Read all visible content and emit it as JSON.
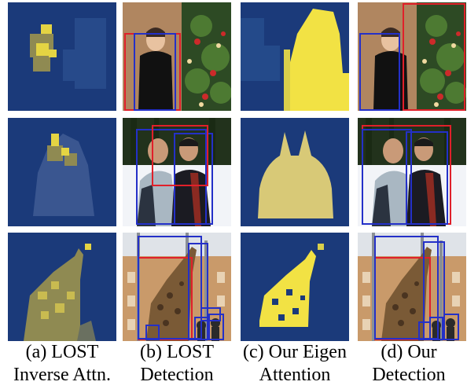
{
  "figure": {
    "columns": [
      {
        "caption_line1": "(a) LOST",
        "caption_line2": "Inverse Attn."
      },
      {
        "caption_line1": "(b) LOST",
        "caption_line2": "Detection"
      },
      {
        "caption_line1": "(c) Our Eigen",
        "caption_line2": "Attention"
      },
      {
        "caption_line1": "(d) Our",
        "caption_line2": "Detection"
      }
    ],
    "rows": [
      {
        "scene": "woman-and-christmas-tree"
      },
      {
        "scene": "two-people-in-snow"
      },
      {
        "scene": "giraffe-at-building"
      }
    ],
    "colors": {
      "heatmap_low": "#1b3a7a",
      "heatmap_high": "#f2e244",
      "lost_box": "#e0202a",
      "our_box": "#2430c8"
    }
  }
}
